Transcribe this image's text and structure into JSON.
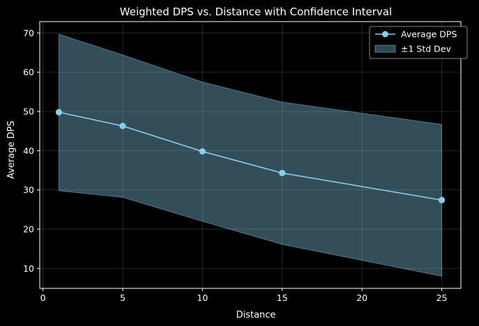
{
  "chart_data": {
    "type": "line",
    "title": "Weighted DPS vs. Distance with Confidence Interval",
    "xlabel": "Distance",
    "ylabel": "Average DPS",
    "xlim": [
      -0.2,
      26.2
    ],
    "ylim": [
      4.9,
      72.9
    ],
    "xticks": [
      0,
      5,
      10,
      15,
      20,
      25
    ],
    "yticks": [
      10,
      20,
      30,
      40,
      50,
      60,
      70
    ],
    "grid": true,
    "legend_position": "top-right",
    "colors": {
      "background": "#000000",
      "line": "#87ceeb",
      "band": "#87ceeb",
      "axes": "#ffffff",
      "grid": "#ffffff"
    },
    "x": [
      1,
      5,
      10,
      15,
      25
    ],
    "series": [
      {
        "name": "Average DPS",
        "values": [
          49.8,
          46.3,
          39.8,
          34.3,
          27.4
        ],
        "marker": "circle"
      }
    ],
    "band": {
      "name": "±1 Std Dev",
      "lower": [
        29.8,
        28.1,
        22.0,
        16.1,
        8.0
      ],
      "upper": [
        69.7,
        64.4,
        57.5,
        52.4,
        46.7
      ]
    }
  }
}
